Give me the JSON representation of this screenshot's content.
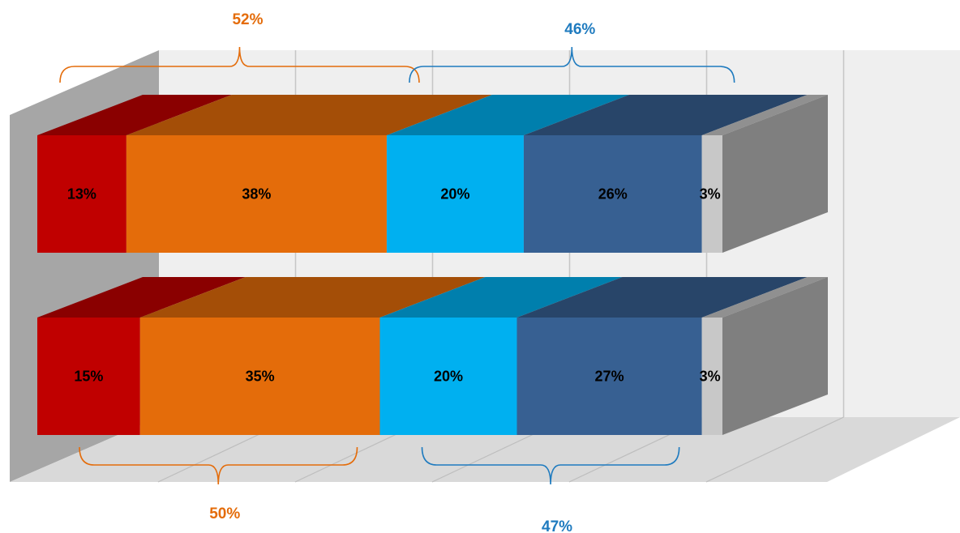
{
  "chart_data": {
    "type": "bar",
    "orientation": "horizontal",
    "stacked": true,
    "percent": true,
    "three_d": true,
    "xlim": [
      0,
      100
    ],
    "grid": true,
    "bars": [
      {
        "segments": [
          13,
          38,
          20,
          26,
          3
        ],
        "labels": [
          "13%",
          "38%",
          "20%",
          "26%",
          "3%"
        ]
      },
      {
        "segments": [
          15,
          35,
          20,
          27,
          3
        ],
        "labels": [
          "15%",
          "35%",
          "20%",
          "27%",
          "3%"
        ]
      }
    ],
    "series_colors": [
      "#c00000",
      "#e46c0a",
      "#00b0f0",
      "#376092",
      "#c8c8c8"
    ],
    "brace_annotations": [
      {
        "bar": 0,
        "position": "top",
        "from_segment": 0,
        "to_segment": 1,
        "label": "52%",
        "color": "#e46c0a"
      },
      {
        "bar": 0,
        "position": "top",
        "from_segment": 2,
        "to_segment": 3,
        "label": "46%",
        "color": "#1f7bbf"
      },
      {
        "bar": 1,
        "position": "bottom",
        "from_segment": 0,
        "to_segment": 1,
        "label": "50%",
        "color": "#e46c0a"
      },
      {
        "bar": 1,
        "position": "bottom",
        "from_segment": 2,
        "to_segment": 3,
        "label": "47%",
        "color": "#1f7bbf"
      }
    ]
  }
}
